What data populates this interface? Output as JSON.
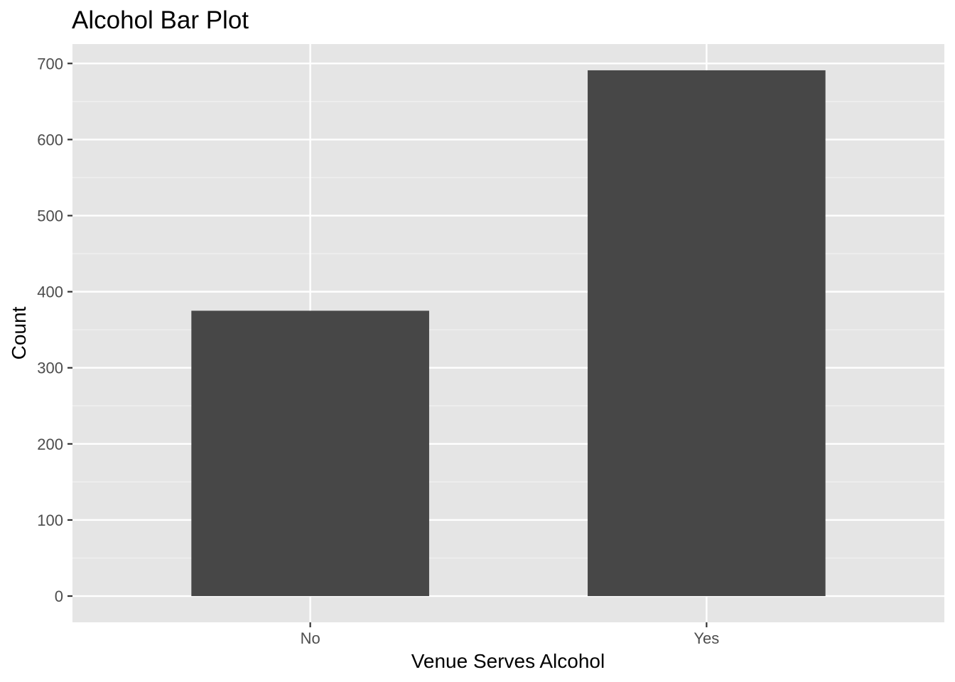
{
  "chart_data": {
    "type": "bar",
    "title": "Alcohol Bar Plot",
    "xlabel": "Venue Serves Alcohol",
    "ylabel": "Count",
    "categories": [
      "No",
      "Yes"
    ],
    "values": [
      375,
      691
    ],
    "ylim": [
      -34.5,
      725.5
    ],
    "yticks": [
      0,
      100,
      200,
      300,
      400,
      500,
      600,
      700
    ],
    "grid": true,
    "legend": "none",
    "colors": {
      "bar": "#474747",
      "panel_background": "#e5e5e5",
      "grid_major": "#ffffff",
      "grid_minor": "#f2f2f2",
      "tick_text": "#4d4d4d",
      "tick_mark": "#333333"
    }
  }
}
